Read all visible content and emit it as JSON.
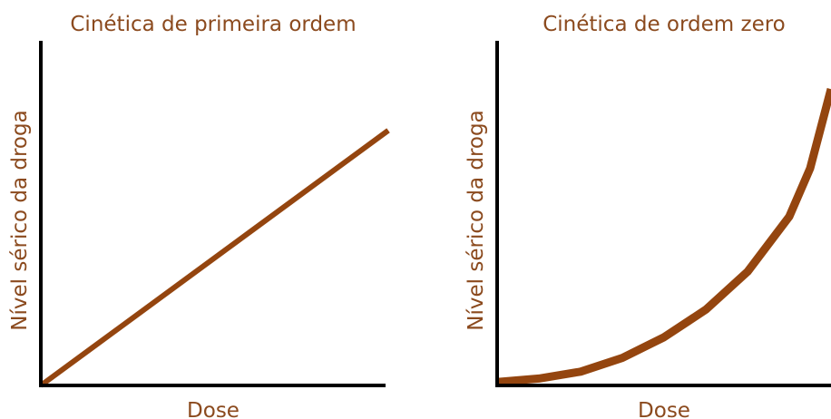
{
  "chart_data": [
    {
      "type": "line",
      "title": "Cinética de primeira ordem",
      "xlabel": "Dose",
      "ylabel": "Nível sérico da droga",
      "x": [
        0,
        100
      ],
      "values": [
        0,
        74
      ],
      "color": "#94450f",
      "xlim": [
        0,
        100
      ],
      "ylim": [
        0,
        100
      ]
    },
    {
      "type": "line",
      "title": "Cinética de ordem zero",
      "xlabel": "Dose",
      "ylabel": "Nível sérico da droga",
      "x": [
        0,
        12.5,
        25,
        37.5,
        50,
        62.5,
        75,
        87.5,
        93.75,
        100
      ],
      "values": [
        1,
        2,
        4,
        8,
        14,
        22,
        33,
        49,
        63,
        86
      ],
      "color": "#94450f",
      "xlim": [
        0,
        100
      ],
      "ylim": [
        0,
        100
      ]
    }
  ]
}
